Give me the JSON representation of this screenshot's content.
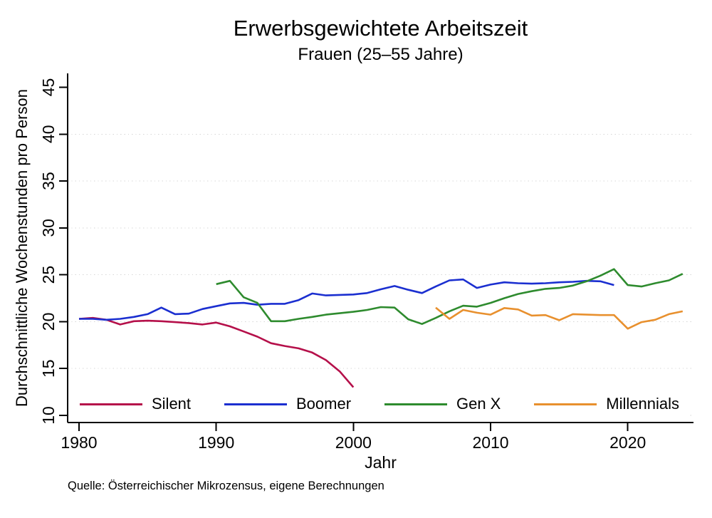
{
  "figure": {
    "title": "Erwerbsgewichtete Arbeitszeit",
    "subtitle": "Frauen (25–55 Jahre)",
    "source_note": "Quelle: Österreichischer Mikrozensus, eigene Berechnungen"
  },
  "chart_data": {
    "type": "line",
    "title": "Erwerbsgewichtete Arbeitszeit",
    "subtitle": "Frauen (25–55 Jahre)",
    "xlabel": "Jahr",
    "ylabel": "Durchschnittliche Wochenstunden pro Person",
    "xlim": [
      1979.17,
      2024.79
    ],
    "ylim": [
      9.24,
      46.48
    ],
    "x_ticks": [
      1980,
      1990,
      2000,
      2010,
      2020
    ],
    "y_ticks": [
      10,
      15,
      20,
      25,
      30,
      35,
      40,
      45
    ],
    "grid_y": [
      10,
      15,
      20,
      25,
      30,
      35,
      40
    ],
    "grid_style": "dotted",
    "legend_position": "bottom-inside-horizontal",
    "background_color": "#ffffff",
    "axis_color": "#000000",
    "grid_color": "#d6d6d6",
    "series": [
      {
        "name": "Silent",
        "color": "#b5104a",
        "points": [
          [
            1980,
            20.3
          ],
          [
            1981,
            20.4
          ],
          [
            1982,
            20.2
          ],
          [
            1983,
            19.7
          ],
          [
            1984,
            20.05
          ],
          [
            1985,
            20.1
          ],
          [
            1986,
            20.05
          ],
          [
            1987,
            19.95
          ],
          [
            1988,
            19.85
          ],
          [
            1989,
            19.7
          ],
          [
            1990,
            19.9
          ],
          [
            1991,
            19.5
          ],
          [
            1992,
            18.95
          ],
          [
            1993,
            18.4
          ],
          [
            1994,
            17.7
          ],
          [
            1995,
            17.4
          ],
          [
            1996,
            17.15
          ],
          [
            1997,
            16.7
          ],
          [
            1998,
            15.9
          ],
          [
            1999,
            14.7
          ],
          [
            2000,
            13.0
          ]
        ]
      },
      {
        "name": "Boomer",
        "color": "#1b2fd0",
        "points": [
          [
            1980,
            20.3
          ],
          [
            1981,
            20.3
          ],
          [
            1982,
            20.2
          ],
          [
            1983,
            20.3
          ],
          [
            1984,
            20.5
          ],
          [
            1985,
            20.8
          ],
          [
            1986,
            21.5
          ],
          [
            1987,
            20.8
          ],
          [
            1988,
            20.85
          ],
          [
            1989,
            21.35
          ],
          [
            1990,
            21.65
          ],
          [
            1991,
            21.95
          ],
          [
            1992,
            22.0
          ],
          [
            1993,
            21.8
          ],
          [
            1994,
            21.9
          ],
          [
            1995,
            21.9
          ],
          [
            1996,
            22.3
          ],
          [
            1997,
            23.0
          ],
          [
            1998,
            22.8
          ],
          [
            1999,
            22.85
          ],
          [
            2000,
            22.9
          ],
          [
            2001,
            23.05
          ],
          [
            2002,
            23.45
          ],
          [
            2003,
            23.8
          ],
          [
            2004,
            23.4
          ],
          [
            2005,
            23.05
          ],
          [
            2006,
            23.75
          ],
          [
            2007,
            24.4
          ],
          [
            2008,
            24.5
          ],
          [
            2009,
            23.6
          ],
          [
            2010,
            23.95
          ],
          [
            2011,
            24.2
          ],
          [
            2012,
            24.1
          ],
          [
            2013,
            24.05
          ],
          [
            2014,
            24.1
          ],
          [
            2015,
            24.2
          ],
          [
            2016,
            24.25
          ],
          [
            2017,
            24.35
          ],
          [
            2018,
            24.3
          ],
          [
            2019,
            23.9
          ]
        ]
      },
      {
        "name": "Gen X",
        "color": "#2e8b2e",
        "points": [
          [
            1990,
            24.0
          ],
          [
            1991,
            24.35
          ],
          [
            1992,
            22.6
          ],
          [
            1993,
            22.0
          ],
          [
            1994,
            20.05
          ],
          [
            1995,
            20.05
          ],
          [
            1996,
            20.3
          ],
          [
            1997,
            20.5
          ],
          [
            1998,
            20.75
          ],
          [
            1999,
            20.9
          ],
          [
            2000,
            21.05
          ],
          [
            2001,
            21.25
          ],
          [
            2002,
            21.55
          ],
          [
            2003,
            21.5
          ],
          [
            2004,
            20.25
          ],
          [
            2005,
            19.75
          ],
          [
            2006,
            20.4
          ],
          [
            2007,
            21.1
          ],
          [
            2008,
            21.7
          ],
          [
            2009,
            21.6
          ],
          [
            2010,
            22.0
          ],
          [
            2011,
            22.5
          ],
          [
            2012,
            22.95
          ],
          [
            2013,
            23.25
          ],
          [
            2014,
            23.5
          ],
          [
            2015,
            23.6
          ],
          [
            2016,
            23.85
          ],
          [
            2017,
            24.3
          ],
          [
            2018,
            24.9
          ],
          [
            2019,
            25.6
          ],
          [
            2020,
            23.9
          ],
          [
            2021,
            23.75
          ],
          [
            2022,
            24.1
          ],
          [
            2023,
            24.4
          ],
          [
            2024,
            25.1
          ]
        ]
      },
      {
        "name": "Millennials",
        "color": "#e8902e",
        "points": [
          [
            2006,
            21.5
          ],
          [
            2007,
            20.3
          ],
          [
            2008,
            21.25
          ],
          [
            2009,
            20.95
          ],
          [
            2010,
            20.75
          ],
          [
            2011,
            21.45
          ],
          [
            2012,
            21.3
          ],
          [
            2013,
            20.65
          ],
          [
            2014,
            20.7
          ],
          [
            2015,
            20.15
          ],
          [
            2016,
            20.8
          ],
          [
            2017,
            20.75
          ],
          [
            2018,
            20.7
          ],
          [
            2019,
            20.7
          ],
          [
            2020,
            19.25
          ],
          [
            2021,
            19.95
          ],
          [
            2022,
            20.2
          ],
          [
            2023,
            20.8
          ],
          [
            2024,
            21.1
          ]
        ]
      }
    ]
  }
}
